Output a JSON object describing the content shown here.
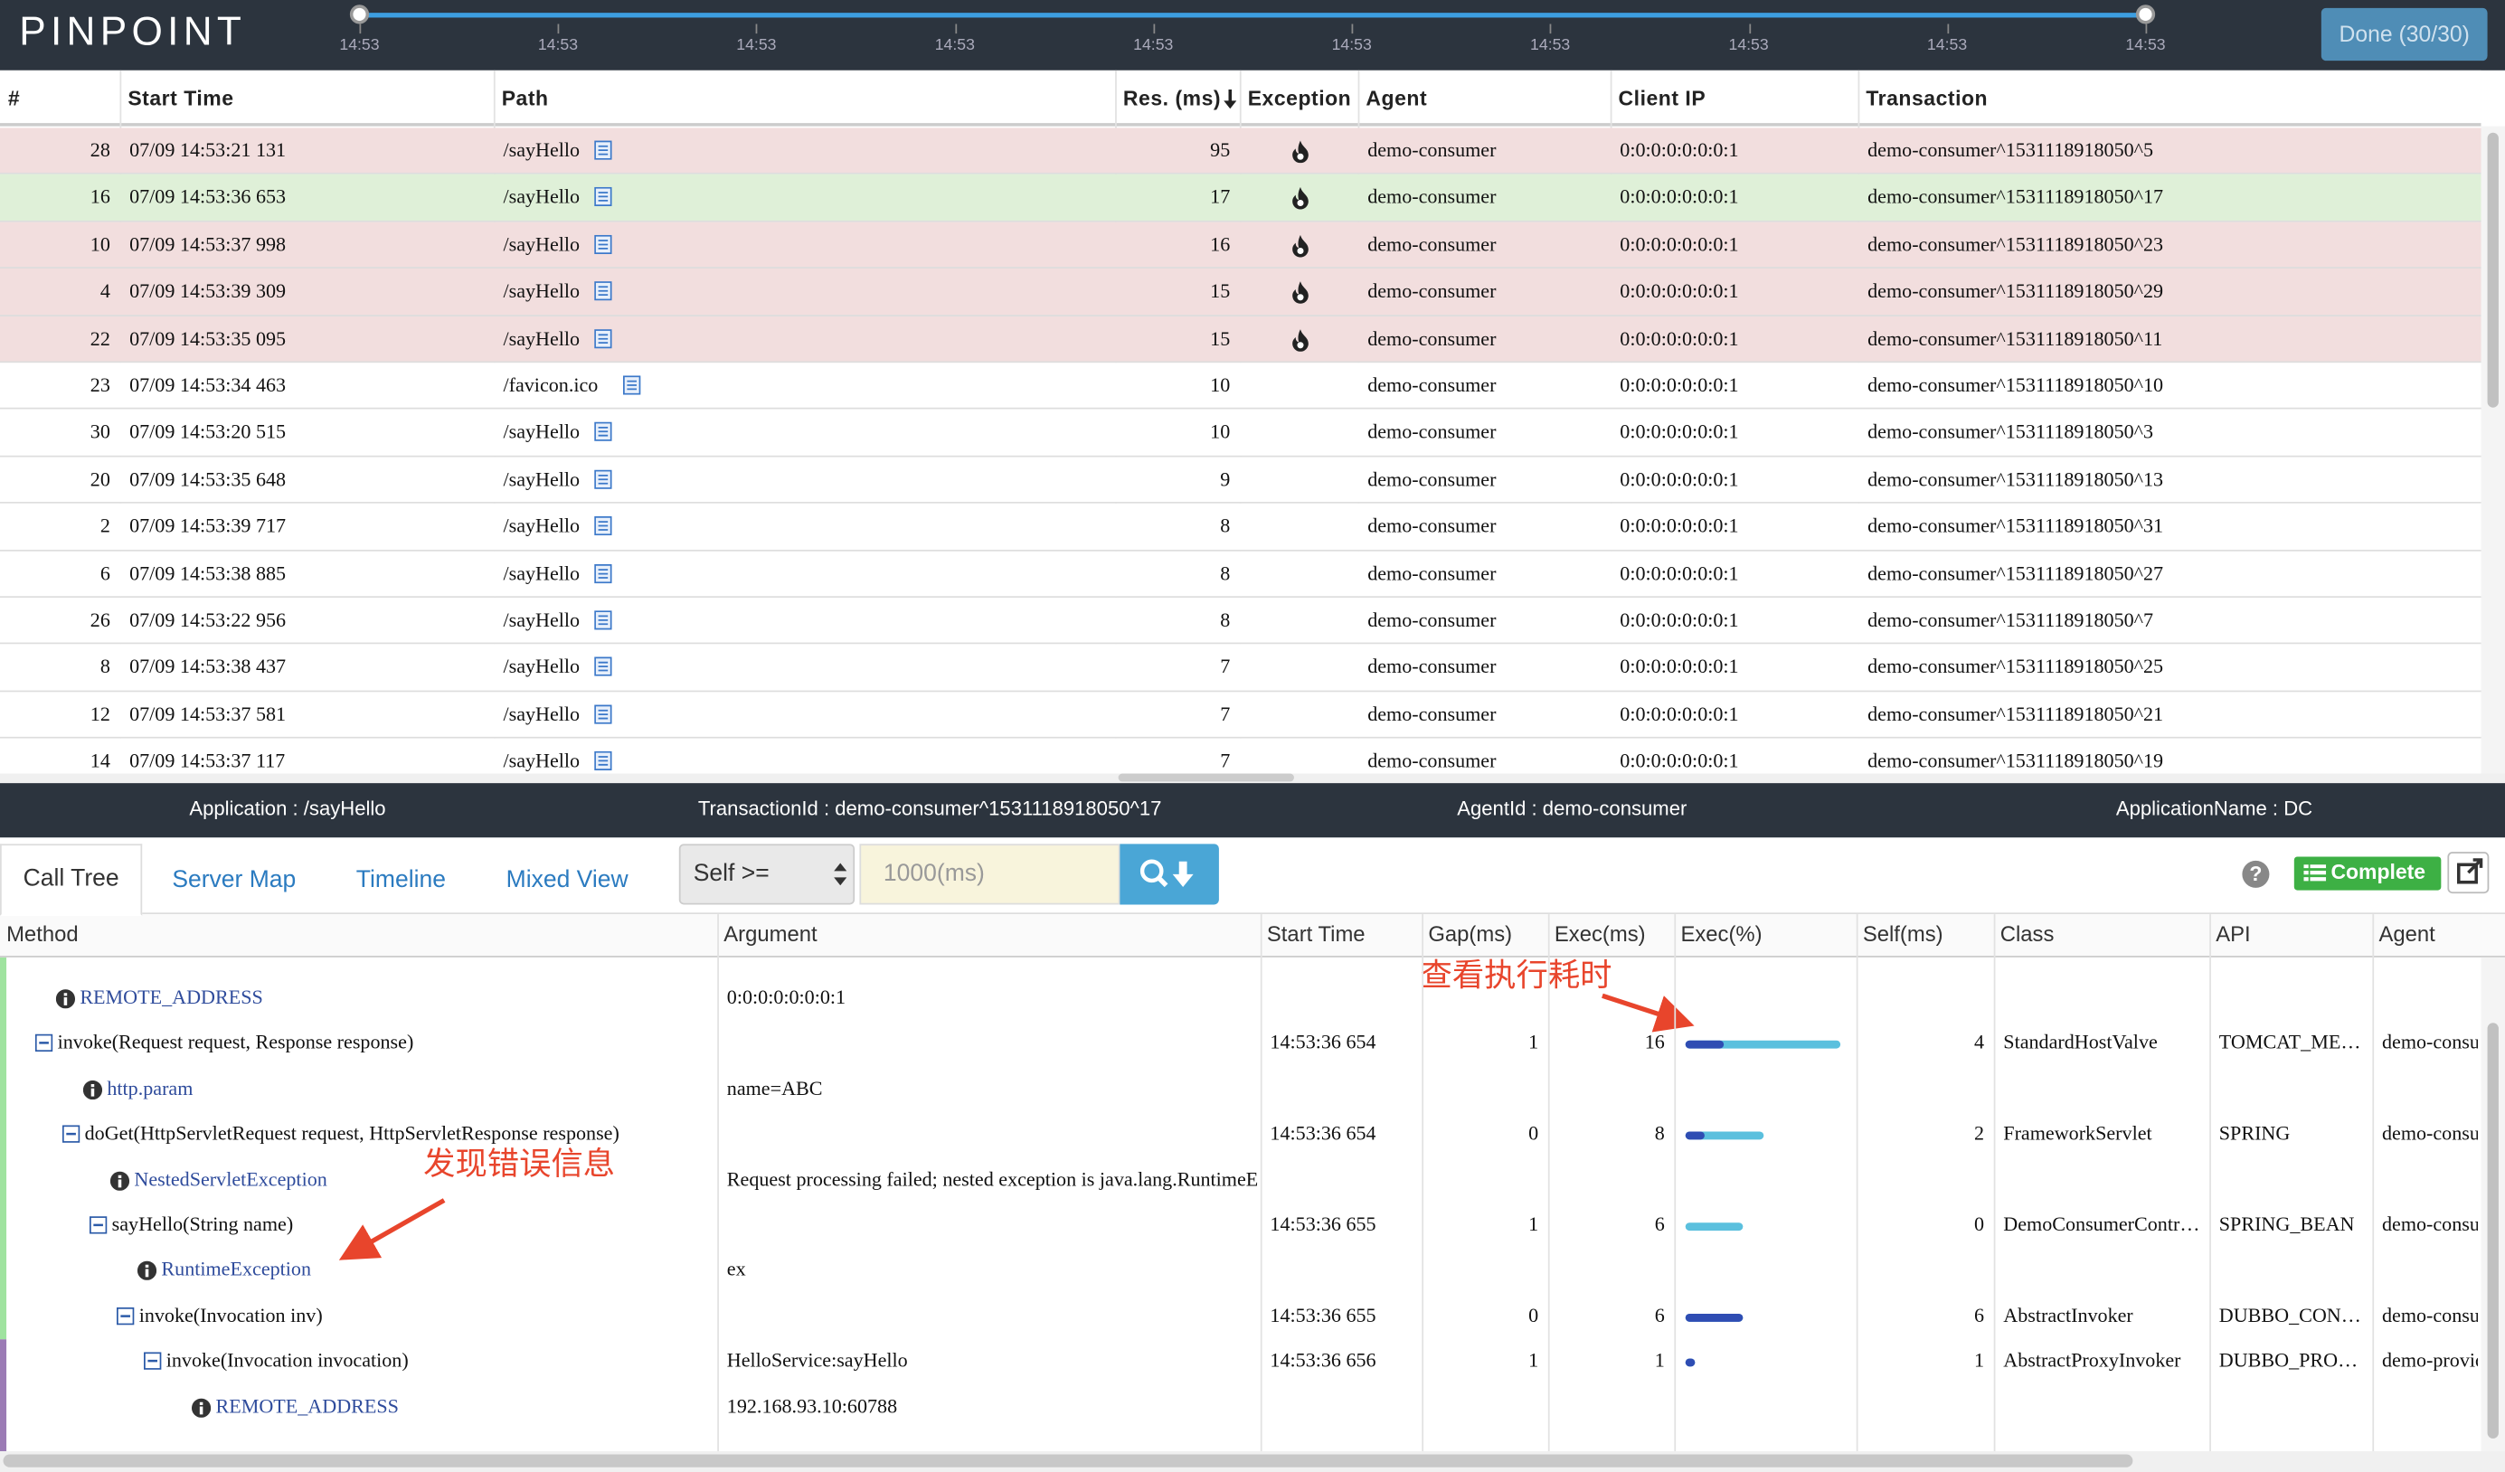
{
  "header": {
    "logo": "PINPOINT",
    "timeline_ticks": [
      "14:53",
      "14:53",
      "14:53",
      "14:53",
      "14:53",
      "14:53",
      "14:53",
      "14:53",
      "14:53",
      "14:53"
    ],
    "done_button": "Done (30/30)"
  },
  "table": {
    "columns": [
      "#",
      "Start Time",
      "Path",
      "Res. (ms)",
      "Exception",
      "Agent",
      "Client IP",
      "Transaction"
    ],
    "rows": [
      {
        "no": 28,
        "start_time": "07/09 14:53:21 131",
        "path": "/sayHello",
        "res": 95,
        "exception": true,
        "agent": "demo-consumer",
        "client_ip": "0:0:0:0:0:0:0:1",
        "transaction": "demo-consumer^1531118918050^5"
      },
      {
        "no": 16,
        "start_time": "07/09 14:53:36 653",
        "path": "/sayHello",
        "res": 17,
        "exception": true,
        "selected": true,
        "agent": "demo-consumer",
        "client_ip": "0:0:0:0:0:0:0:1",
        "transaction": "demo-consumer^1531118918050^17"
      },
      {
        "no": 10,
        "start_time": "07/09 14:53:37 998",
        "path": "/sayHello",
        "res": 16,
        "exception": true,
        "agent": "demo-consumer",
        "client_ip": "0:0:0:0:0:0:0:1",
        "transaction": "demo-consumer^1531118918050^23"
      },
      {
        "no": 4,
        "start_time": "07/09 14:53:39 309",
        "path": "/sayHello",
        "res": 15,
        "exception": true,
        "agent": "demo-consumer",
        "client_ip": "0:0:0:0:0:0:0:1",
        "transaction": "demo-consumer^1531118918050^29"
      },
      {
        "no": 22,
        "start_time": "07/09 14:53:35 095",
        "path": "/sayHello",
        "res": 15,
        "exception": true,
        "agent": "demo-consumer",
        "client_ip": "0:0:0:0:0:0:0:1",
        "transaction": "demo-consumer^1531118918050^11"
      },
      {
        "no": 23,
        "start_time": "07/09 14:53:34 463",
        "path": "/favicon.ico",
        "res": 10,
        "exception": false,
        "agent": "demo-consumer",
        "client_ip": "0:0:0:0:0:0:0:1",
        "transaction": "demo-consumer^1531118918050^10"
      },
      {
        "no": 30,
        "start_time": "07/09 14:53:20 515",
        "path": "/sayHello",
        "res": 10,
        "exception": false,
        "agent": "demo-consumer",
        "client_ip": "0:0:0:0:0:0:0:1",
        "transaction": "demo-consumer^1531118918050^3"
      },
      {
        "no": 20,
        "start_time": "07/09 14:53:35 648",
        "path": "/sayHello",
        "res": 9,
        "exception": false,
        "agent": "demo-consumer",
        "client_ip": "0:0:0:0:0:0:0:1",
        "transaction": "demo-consumer^1531118918050^13"
      },
      {
        "no": 2,
        "start_time": "07/09 14:53:39 717",
        "path": "/sayHello",
        "res": 8,
        "exception": false,
        "agent": "demo-consumer",
        "client_ip": "0:0:0:0:0:0:0:1",
        "transaction": "demo-consumer^1531118918050^31"
      },
      {
        "no": 6,
        "start_time": "07/09 14:53:38 885",
        "path": "/sayHello",
        "res": 8,
        "exception": false,
        "agent": "demo-consumer",
        "client_ip": "0:0:0:0:0:0:0:1",
        "transaction": "demo-consumer^1531118918050^27"
      },
      {
        "no": 26,
        "start_time": "07/09 14:53:22 956",
        "path": "/sayHello",
        "res": 8,
        "exception": false,
        "agent": "demo-consumer",
        "client_ip": "0:0:0:0:0:0:0:1",
        "transaction": "demo-consumer^1531118918050^7"
      },
      {
        "no": 8,
        "start_time": "07/09 14:53:38 437",
        "path": "/sayHello",
        "res": 7,
        "exception": false,
        "agent": "demo-consumer",
        "client_ip": "0:0:0:0:0:0:0:1",
        "transaction": "demo-consumer^1531118918050^25"
      },
      {
        "no": 12,
        "start_time": "07/09 14:53:37 581",
        "path": "/sayHello",
        "res": 7,
        "exception": false,
        "agent": "demo-consumer",
        "client_ip": "0:0:0:0:0:0:0:1",
        "transaction": "demo-consumer^1531118918050^21"
      },
      {
        "no": 14,
        "start_time": "07/09 14:53:37 117",
        "path": "/sayHello",
        "res": 7,
        "exception": false,
        "agent": "demo-consumer",
        "client_ip": "0:0:0:0:0:0:0:1",
        "transaction": "demo-consumer^1531118918050^19"
      }
    ]
  },
  "info_bar": [
    "Application : /sayHello",
    "TransactionId : demo-consumer^1531118918050^17",
    "AgentId : demo-consumer",
    "ApplicationName : DC"
  ],
  "tabs": [
    "Call Tree",
    "Server Map",
    "Timeline",
    "Mixed View"
  ],
  "filter": {
    "select": "Self >=",
    "placeholder": "1000(ms)"
  },
  "toolbar": {
    "help": "?",
    "complete": "Complete"
  },
  "call_tree": {
    "columns": [
      "Method",
      "Argument",
      "Start Time",
      "Gap(ms)",
      "Exec(ms)",
      "Exec(%)",
      "Self(ms)",
      "Class",
      "API",
      "Agent"
    ],
    "rows": [
      {
        "kind": "info",
        "depth": 0,
        "method": "REMOTE_ADDRESS",
        "argument": "0:0:0:0:0:0:0:1"
      },
      {
        "kind": "method",
        "depth": 0,
        "method": "invoke(Request request, Response response)",
        "start_time": "14:53:36 654",
        "gap": 1,
        "exec": 16,
        "self": 4,
        "class": "StandardHostValve",
        "api": "TOMCAT_METHOD",
        "agent": "demo-consumer"
      },
      {
        "kind": "info",
        "depth": 1,
        "method": "http.param",
        "argument": "name=ABC"
      },
      {
        "kind": "method",
        "depth": 1,
        "method": "doGet(HttpServletRequest request, HttpServletResponse response)",
        "start_time": "14:53:36 654",
        "gap": 0,
        "exec": 8,
        "self": 2,
        "class": "FrameworkServlet",
        "api": "SPRING",
        "agent": "demo-consumer"
      },
      {
        "kind": "info",
        "depth": 2,
        "method": "NestedServletException",
        "argument": "Request processing failed; nested exception is java.lang.RuntimeException"
      },
      {
        "kind": "method",
        "depth": 2,
        "method": "sayHello(String name)",
        "start_time": "14:53:36 655",
        "gap": 1,
        "exec": 6,
        "self": 0,
        "class": "DemoConsumerController",
        "api": "SPRING_BEAN",
        "agent": "demo-consumer"
      },
      {
        "kind": "info",
        "depth": 3,
        "method": "RuntimeException",
        "argument": "ex"
      },
      {
        "kind": "method",
        "depth": 3,
        "method": "invoke(Invocation inv)",
        "start_time": "14:53:36 655",
        "gap": 0,
        "exec": 6,
        "self": 6,
        "class": "AbstractInvoker",
        "api": "DUBBO_CONSUMER",
        "agent": "demo-consumer"
      },
      {
        "kind": "method",
        "depth": 4,
        "method": "invoke(Invocation invocation)",
        "argument": "HelloService:sayHello",
        "start_time": "14:53:36 656",
        "gap": 1,
        "exec": 1,
        "self": 1,
        "class": "AbstractProxyInvoker",
        "api": "DUBBO_PROVIDER",
        "agent": "demo-provider"
      },
      {
        "kind": "info",
        "depth": 5,
        "method": "REMOTE_ADDRESS",
        "argument": "192.168.93.10:60788"
      }
    ]
  },
  "annotations": [
    "查看执行耗时",
    "发现错误信息"
  ]
}
